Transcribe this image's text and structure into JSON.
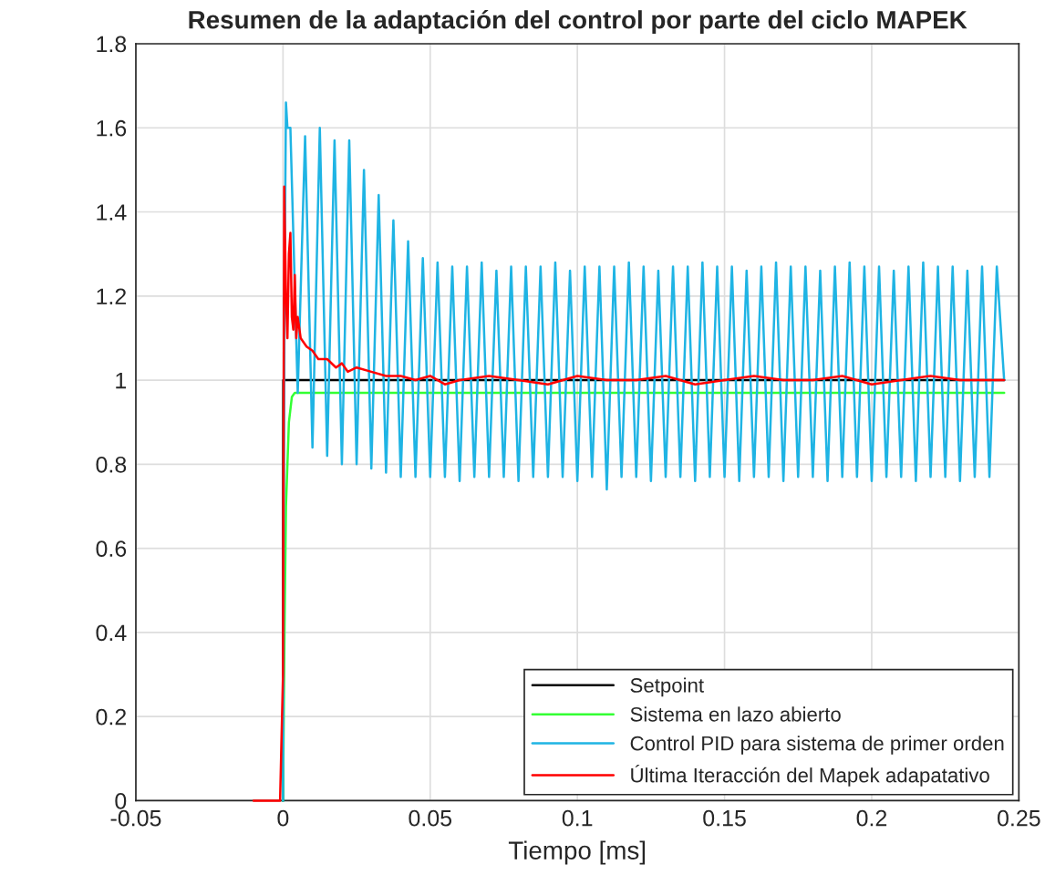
{
  "chart_data": {
    "type": "line",
    "title": "Resumen de la adaptación del control por parte del ciclo MAPEK",
    "xlabel": "Tiempo [ms]",
    "xlim": [
      -0.05,
      0.25
    ],
    "xticks": [
      -0.05,
      0,
      0.05,
      0.1,
      0.15,
      0.2,
      0.25
    ],
    "ylim": [
      0,
      1.8
    ],
    "yticks": [
      0,
      0.2,
      0.4,
      0.6,
      0.8,
      1,
      1.2,
      1.4,
      1.6,
      1.8
    ],
    "grid": true,
    "legend": "bottom right",
    "line_style": "solid",
    "marker": "none",
    "series": [
      {
        "name": "Setpoint",
        "color": "#000000",
        "x": [
          0,
          0.0001,
          0.245
        ],
        "values": [
          0,
          1,
          1
        ]
      },
      {
        "name": "Sistema en lazo abierto",
        "color": "#33ff33",
        "x": [
          0,
          0.0005,
          0.001,
          0.002,
          0.003,
          0.004,
          0.245
        ],
        "values": [
          0,
          0.4,
          0.7,
          0.9,
          0.96,
          0.97,
          0.97
        ]
      },
      {
        "name": "Control PID para sistema de primer orden",
        "color": "#1fb4e4",
        "x": [
          0,
          0.0005,
          0.001,
          0.0015,
          0.0025,
          0.005,
          0.0075,
          0.01,
          0.0125,
          0.015,
          0.0175,
          0.02,
          0.0225,
          0.025,
          0.0275,
          0.03,
          0.0325,
          0.035,
          0.0375,
          0.04,
          0.0425,
          0.045,
          0.0475,
          0.05,
          0.0525,
          0.055,
          0.0575,
          0.06,
          0.0625,
          0.065,
          0.0675,
          0.07,
          0.0725,
          0.075,
          0.0775,
          0.08,
          0.0825,
          0.085,
          0.0875,
          0.09,
          0.0925,
          0.095,
          0.0975,
          0.1,
          0.1025,
          0.105,
          0.1075,
          0.11,
          0.1125,
          0.115,
          0.1175,
          0.12,
          0.1225,
          0.125,
          0.1275,
          0.13,
          0.1325,
          0.135,
          0.1375,
          0.14,
          0.1425,
          0.145,
          0.1475,
          0.15,
          0.1525,
          0.155,
          0.1575,
          0.16,
          0.1625,
          0.165,
          0.1675,
          0.17,
          0.1725,
          0.175,
          0.1775,
          0.18,
          0.1825,
          0.185,
          0.1875,
          0.19,
          0.1925,
          0.195,
          0.1975,
          0.2,
          0.2025,
          0.205,
          0.2075,
          0.21,
          0.2125,
          0.215,
          0.2175,
          0.22,
          0.2225,
          0.225,
          0.2275,
          0.23,
          0.2325,
          0.235,
          0.2375,
          0.24,
          0.2425,
          0.245
        ],
        "values": [
          0,
          1.2,
          1.66,
          1.6,
          1.6,
          0.97,
          1.58,
          0.84,
          1.6,
          0.82,
          1.57,
          0.8,
          1.57,
          0.8,
          1.5,
          0.79,
          1.44,
          0.78,
          1.38,
          0.77,
          1.33,
          0.77,
          1.29,
          0.77,
          1.28,
          0.77,
          1.27,
          0.76,
          1.27,
          0.77,
          1.28,
          0.77,
          1.26,
          0.77,
          1.27,
          0.76,
          1.27,
          0.77,
          1.27,
          0.77,
          1.28,
          0.77,
          1.26,
          0.76,
          1.27,
          0.77,
          1.27,
          0.74,
          1.27,
          0.77,
          1.28,
          0.77,
          1.27,
          0.76,
          1.26,
          0.77,
          1.27,
          0.77,
          1.27,
          0.76,
          1.28,
          0.77,
          1.27,
          0.77,
          1.27,
          0.76,
          1.26,
          0.77,
          1.27,
          0.77,
          1.28,
          0.76,
          1.27,
          0.77,
          1.27,
          0.77,
          1.26,
          0.76,
          1.27,
          0.77,
          1.28,
          0.77,
          1.27,
          0.76,
          1.27,
          0.77,
          1.26,
          0.77,
          1.27,
          0.76,
          1.28,
          0.77,
          1.27,
          0.77,
          1.27,
          0.76,
          1.26,
          0.77,
          1.27,
          0.77,
          1.27,
          1.0
        ]
      },
      {
        "name": "Última Iteracción del Mapek adapatativo",
        "color": "#ff0000",
        "x": [
          -0.01,
          -0.001,
          0,
          0.0004,
          0.001,
          0.0015,
          0.002,
          0.0025,
          0.003,
          0.0035,
          0.004,
          0.0045,
          0.005,
          0.006,
          0.008,
          0.01,
          0.012,
          0.015,
          0.018,
          0.02,
          0.022,
          0.025,
          0.03,
          0.035,
          0.04,
          0.045,
          0.05,
          0.055,
          0.06,
          0.07,
          0.08,
          0.09,
          0.1,
          0.11,
          0.12,
          0.13,
          0.14,
          0.15,
          0.16,
          0.17,
          0.18,
          0.19,
          0.2,
          0.21,
          0.22,
          0.23,
          0.245
        ],
        "values": [
          0,
          0,
          0.3,
          1.46,
          1.2,
          1.1,
          1.3,
          1.35,
          1.15,
          1.12,
          1.25,
          1.1,
          1.15,
          1.1,
          1.08,
          1.07,
          1.05,
          1.05,
          1.03,
          1.04,
          1.02,
          1.03,
          1.02,
          1.01,
          1.01,
          1.0,
          1.01,
          0.99,
          1.0,
          1.01,
          1.0,
          0.99,
          1.01,
          1.0,
          1.0,
          1.01,
          0.99,
          1.0,
          1.01,
          1.0,
          1.0,
          1.01,
          0.99,
          1.0,
          1.01,
          1.0,
          1.0
        ]
      }
    ]
  }
}
